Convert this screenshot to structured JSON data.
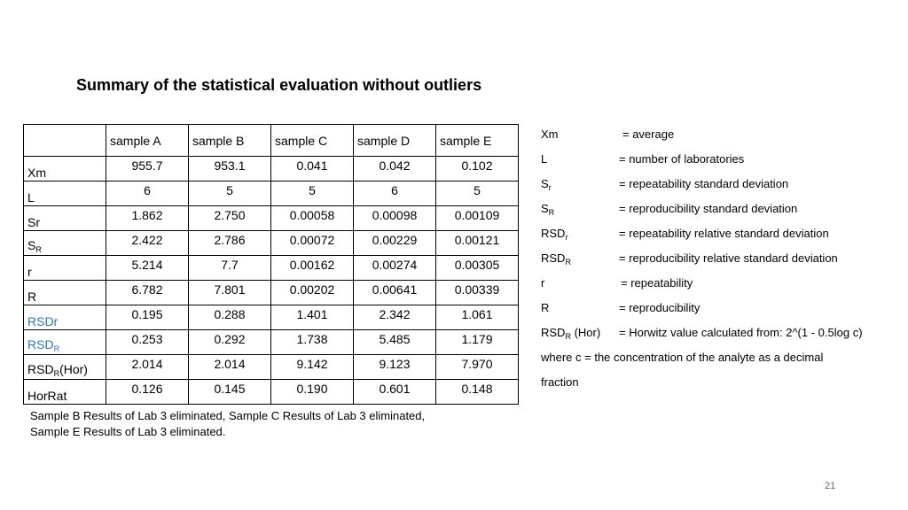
{
  "title": "Summary of the statistical evaluation without outliers",
  "table": {
    "columns": [
      "sample A",
      "sample B",
      "sample C",
      "sample D",
      "sample E"
    ],
    "rows": [
      {
        "label": "Xm",
        "values": [
          "955.7",
          "953.1",
          "0.041",
          "0.042",
          "0.102"
        ]
      },
      {
        "label": "L",
        "values": [
          "6",
          "5",
          "5",
          "6",
          "5"
        ]
      },
      {
        "label": "Sr",
        "values": [
          "1.862",
          "2.750",
          "0.00058",
          "0.00098",
          "0.00109"
        ]
      },
      {
        "label": "S",
        "label_sub": "R",
        "values": [
          "2.422",
          "2.786",
          "0.00072",
          "0.00229",
          "0.00121"
        ]
      },
      {
        "label": "r",
        "values": [
          "5.214",
          "7.7",
          "0.00162",
          "0.00274",
          "0.00305"
        ]
      },
      {
        "label": "R",
        "values": [
          "6.782",
          "7.801",
          "0.00202",
          "0.00641",
          "0.00339"
        ]
      },
      {
        "label": "RSDr",
        "values": [
          "0.195",
          "0.288",
          "1.401",
          "2.342",
          "1.061"
        ]
      },
      {
        "label": "RSD",
        "label_sub": "R",
        "values": [
          "0.253",
          "0.292",
          "1.738",
          "5.485",
          "1.179"
        ]
      },
      {
        "label": "RSD",
        "label_sub": "R",
        "label_suffix": "(Hor)",
        "values": [
          "2.014",
          "2.014",
          "9.142",
          "9.123",
          "7.970"
        ]
      },
      {
        "label": "HorRat",
        "values": [
          "0.126",
          "0.145",
          "0.190",
          "0.601",
          "0.148"
        ]
      }
    ]
  },
  "note": "Sample B Results of Lab 3 eliminated, Sample C Results of Lab 3 eliminated, Sample E Results of Lab 3 eliminated.",
  "legend": [
    {
      "term": "Xm",
      "def": "= average"
    },
    {
      "term": "L",
      "def": "= number of laboratories"
    },
    {
      "term": "S",
      "term_sub": "r",
      "def": "= repeatability standard deviation"
    },
    {
      "term": "S",
      "term_sub": "R",
      "def": "= reproducibility standard deviation"
    },
    {
      "term": "RSD",
      "term_sub": "r",
      "def": "= repeatability relative standard deviation"
    },
    {
      "term": "RSD",
      "term_sub": "R",
      "def": "= reproducibility relative standard deviation"
    },
    {
      "term": "r",
      "def": "= repeatability"
    },
    {
      "term": "R",
      "def": "= reproducibility"
    },
    {
      "term": "RSD",
      "term_sub": "R",
      "term_suffix": " (Hor)",
      "def": "= Horwitz value calculated from: 2^(1 - 0.5log c)"
    }
  ],
  "legend_footer": [
    "where c = the concentration of the analyte as a decimal",
    "fraction"
  ],
  "page_number": "21",
  "colors": {
    "accent_label": "#2e75b6"
  }
}
